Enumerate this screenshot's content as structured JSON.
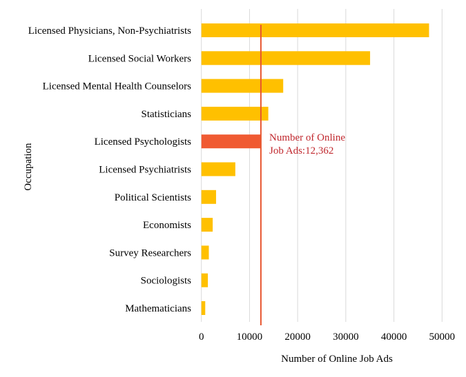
{
  "chart_data": {
    "type": "bar",
    "orientation": "horizontal",
    "title": "",
    "xlabel": "Number of Online Job Ads",
    "ylabel": "Occupation",
    "xlim": [
      0,
      50000
    ],
    "xticks": [
      0,
      10000,
      20000,
      30000,
      40000,
      50000
    ],
    "xtick_labels": [
      "0",
      "10000",
      "20000",
      "30000",
      "40000",
      "50000"
    ],
    "grid": true,
    "categories": [
      "Licensed Physicians, Non-Psychiatrists",
      "Licensed Social Workers",
      "Licensed Mental Health Counselors",
      "Statisticians",
      "Licensed Psychologists",
      "Licensed Psychiatrists",
      "Political Scientists",
      "Economists",
      "Survey Researchers",
      "Sociologists",
      "Mathematicians"
    ],
    "values": [
      47300,
      35050,
      17000,
      13900,
      12362,
      7050,
      3050,
      2350,
      1550,
      1350,
      800
    ],
    "highlight_index": 4,
    "reference_line": {
      "value": 12362,
      "label_line1": "Number of Online",
      "label_line2": "Job Ads:12,362"
    },
    "colors": {
      "bar": "#FFC000",
      "highlight": "#F05A32",
      "line": "#E8552E",
      "annotation": "#C0272D",
      "grid": "#D9D9D9",
      "text": "#000000"
    }
  }
}
